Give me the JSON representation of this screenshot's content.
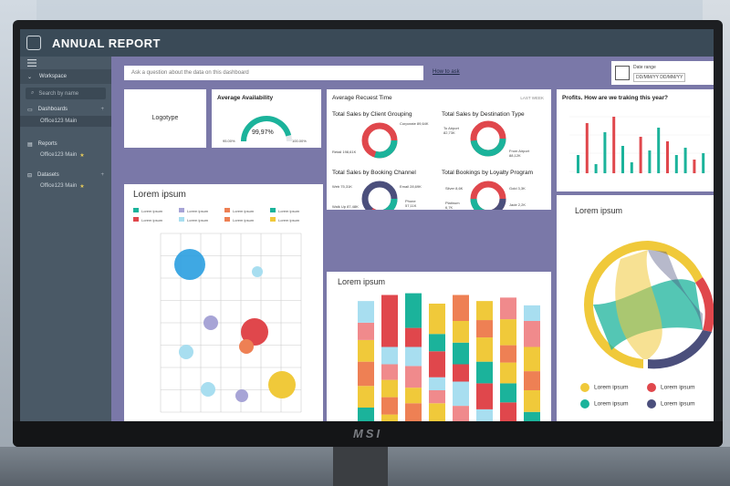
{
  "app": {
    "title": "ANNUAL REPORT"
  },
  "sidebar": {
    "workspace": "Workspace",
    "search_placeholder": "Search by name",
    "sections": [
      {
        "label": "Dashboards",
        "sub": "Office123 Main"
      },
      {
        "label": "Reports",
        "sub": "Office123 Main"
      },
      {
        "label": "Datasets",
        "sub": "Office123 Main"
      }
    ]
  },
  "toolbar": {
    "qa_placeholder": "Ask a question about the data on this dashboard",
    "how_to": "How to ask",
    "date_label": "Date range",
    "date_value": "DD/MM/YY   DD/MM/YY"
  },
  "tiles": {
    "logotype": "Logotype",
    "availability": {
      "title": "Average Availability",
      "value": "99,97%",
      "min": "95.00%",
      "max": "100.00%",
      "fraction": 0.9997
    },
    "request_time": {
      "title": "Average Recuest Time",
      "period": "LAST WEEK"
    },
    "profits_title": "Profits. How are we traking this year?",
    "scatter_title": "Lorem ipsum",
    "stacked_title": "Lorem ipsum",
    "chord_title": "Lorem ipsum"
  },
  "donuts": [
    {
      "title": "Total Sales by Client Grouping",
      "labels": [
        "Corporate 89,64K",
        "Retail 198,61K"
      ]
    },
    {
      "title": "Total Sales by Destination Type",
      "labels": [
        "To Airport 82,73K",
        "From Airport 88,12K"
      ]
    },
    {
      "title": "Total Sales by Booking Channel",
      "labels": [
        "Web 75,31K",
        "Email 28,69K",
        "Phone 57,11K",
        "Walk Up 87,48K"
      ]
    },
    {
      "title": "Total Bookings by Loyalty Program",
      "labels": [
        "Silver 8,6K",
        "Gold 3,3K",
        "Platinum 6,7K",
        "Jade 2,2K"
      ]
    }
  ],
  "scatter_legend": [
    "Lorem ipsum",
    "Lorem ipsum",
    "Lorem ipsum",
    "Lorem ipsum",
    "Lorem ipsum",
    "Lorem ipsum",
    "Lorem ipsum",
    "Lorem ipsum"
  ],
  "chord_legend": [
    "Lorem ipsum",
    "Lorem ipsum",
    "Lorem ipsum",
    "Lorem ipsum"
  ],
  "colors": {
    "teal": "#1bb39b",
    "red": "#e0474c",
    "yellow": "#f0c93a",
    "purple": "#4b4f7c",
    "pink": "#f08a8c",
    "lightblue": "#a8def0",
    "lavender": "#a7a4d6",
    "orange": "#ee8054"
  }
}
